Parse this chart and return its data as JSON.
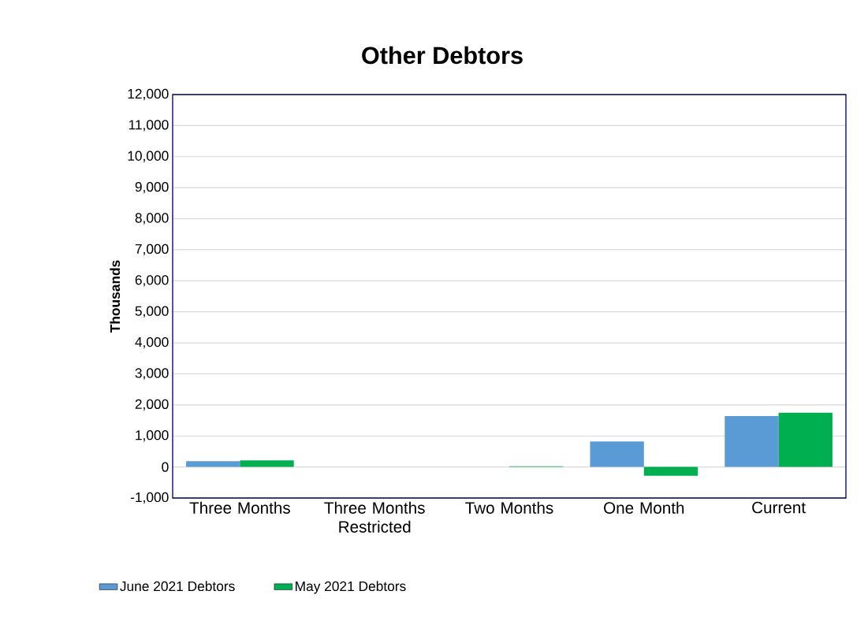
{
  "chart_data": {
    "type": "bar",
    "title": "Other Debtors",
    "ylabel": "Thousands",
    "categories": [
      "Three Months",
      "Three Months Restricted",
      "Two Months",
      "One Month",
      "Current"
    ],
    "series": [
      {
        "name": "June 2021 Debtors",
        "color": "#5b9bd5",
        "values": [
          190,
          0,
          0,
          820,
          1640
        ]
      },
      {
        "name": "May 2021 Debtors",
        "color": "#00b050",
        "values": [
          210,
          0,
          20,
          -280,
          1750
        ]
      }
    ],
    "ylim": [
      -1000,
      12000
    ],
    "yticks": [
      {
        "value": -1000,
        "label": "-1,000"
      },
      0,
      {
        "value": 1000,
        "label": "1,000"
      },
      {
        "value": 2000,
        "label": "2,000"
      },
      {
        "value": 3000,
        "label": "3,000"
      },
      {
        "value": 4000,
        "label": "4,000"
      },
      {
        "value": 5000,
        "label": "5,000"
      },
      {
        "value": 6000,
        "label": "6,000"
      },
      {
        "value": 7000,
        "label": "7,000"
      },
      {
        "value": 8000,
        "label": "8,000"
      },
      {
        "value": 9000,
        "label": "9,000"
      },
      {
        "value": 10000,
        "label": "10,000"
      },
      {
        "value": 11000,
        "label": "11,000"
      },
      {
        "value": 12000,
        "label": "12,000"
      }
    ],
    "grid": "y",
    "legend": "bottom"
  }
}
